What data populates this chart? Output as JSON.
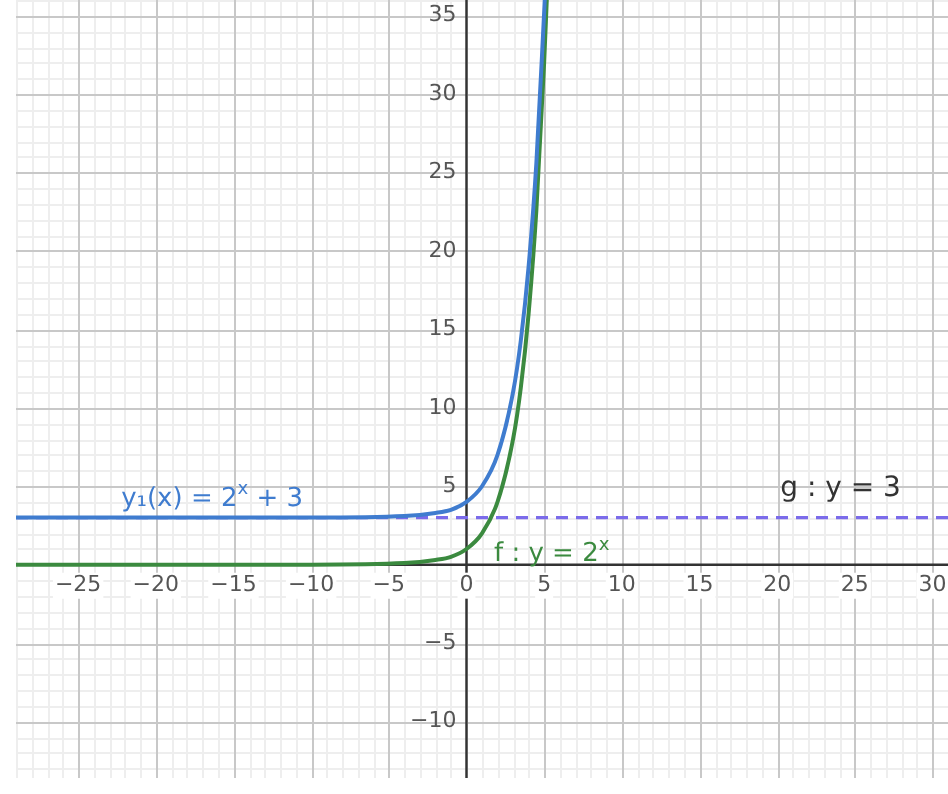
{
  "chart_data": {
    "type": "line",
    "x": [
      -29,
      -10,
      -4,
      -2,
      -1,
      0,
      1,
      2,
      3,
      3.5,
      4,
      4.5,
      5,
      5.17
    ],
    "series": [
      {
        "name": "y₁(x) = 2$^{x}$ + 3",
        "color": "#3f7ccf",
        "x": [
          -29,
          -10,
          -4,
          -2,
          -1,
          0,
          1,
          2,
          3,
          3.5,
          4,
          4.5,
          5.04
        ],
        "values": [
          3,
          3,
          3.1,
          3.3,
          3.5,
          4,
          5,
          7,
          11,
          14.3,
          19,
          25.6,
          36
        ]
      },
      {
        "name": "f : y = 2$^{x}$",
        "color": "#3b8a3f",
        "values": [
          0,
          0,
          0.1,
          0.3,
          0.5,
          1,
          2,
          4,
          8,
          11.3,
          16,
          22.6,
          32,
          36
        ]
      }
    ],
    "ref_lines": [
      {
        "axis": "y",
        "value": 3,
        "label": "g : y = 3",
        "color": "#7b6bea",
        "line_style": "dashed"
      }
    ],
    "xlim": [
      -29,
      31
    ],
    "ylim": [
      -13.6,
      36
    ],
    "xticks": [
      {
        "value": -25,
        "label": "−25"
      },
      {
        "value": -20,
        "label": "−20"
      },
      {
        "value": -15,
        "label": "−15"
      },
      {
        "value": -10,
        "label": "−10"
      },
      {
        "value": -5,
        "label": "−5"
      },
      0,
      5,
      10,
      15,
      20,
      25,
      30
    ],
    "yticks": [
      {
        "value": -10,
        "label": "−10"
      },
      {
        "value": -5,
        "label": "−5"
      },
      {
        "value": 0,
        "label": null
      },
      5,
      10,
      15,
      20,
      25,
      30,
      35
    ],
    "grid": true,
    "legend": false,
    "marker": "none",
    "line_style": "solid"
  }
}
